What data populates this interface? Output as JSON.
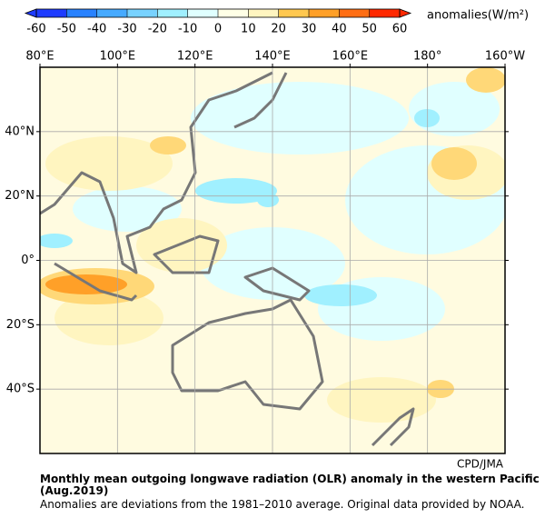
{
  "colorbar": {
    "ticks": [
      -60,
      -50,
      -40,
      -30,
      -20,
      -10,
      0,
      10,
      20,
      30,
      40,
      50,
      60
    ],
    "colors": [
      "#1e3cff",
      "#2882ff",
      "#46aaff",
      "#78d2ff",
      "#a0f0ff",
      "#e0ffff",
      "#ffffe6",
      "#fff5c0",
      "#ffc850",
      "#ffa028",
      "#ff6e14",
      "#ff2800"
    ],
    "unit": "anomalies(W/m²)"
  },
  "map": {
    "lon_labels": [
      "80°E",
      "100°E",
      "120°E",
      "140°E",
      "160°E",
      "180°",
      "160°W"
    ],
    "lat_labels": [
      "40°N",
      "20°N",
      "0°",
      "20°S",
      "40°S"
    ],
    "credit": "CPD/JMA"
  },
  "caption": {
    "title_lines": [
      "Monthly mean outgoing longwave radiation (OLR) anomaly in the western Pacific",
      "(Aug.2019)"
    ],
    "note": "Anomalies are deviations from the 1981–2010 average. Original data provided by NOAA."
  }
}
